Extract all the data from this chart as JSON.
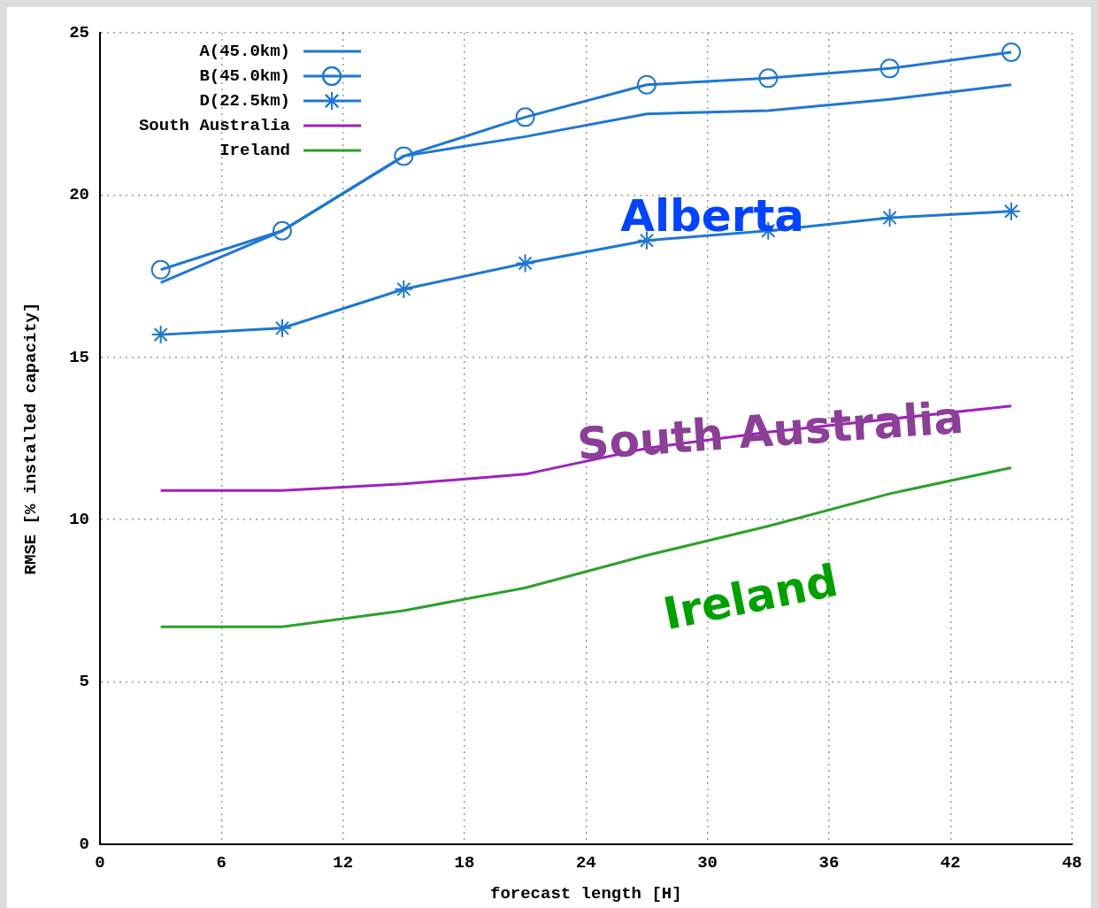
{
  "chart_data": {
    "type": "line",
    "xlabel": "forecast length [H]",
    "ylabel": "RMSE [% installed capacity]",
    "x": [
      3,
      9,
      15,
      21,
      27,
      33,
      39,
      45
    ],
    "series": [
      {
        "name": "A(45.0km)",
        "color": "#1f77d0",
        "marker": "none",
        "values": [
          17.3,
          18.9,
          21.2,
          21.8,
          22.5,
          22.6,
          22.95,
          23.4
        ]
      },
      {
        "name": "B(45.0km)",
        "color": "#1f77d0",
        "marker": "circle",
        "values": [
          17.7,
          18.9,
          21.2,
          22.4,
          23.4,
          23.6,
          23.9,
          24.4
        ]
      },
      {
        "name": "D(22.5km)",
        "color": "#1f77d0",
        "marker": "cross",
        "values": [
          15.7,
          15.9,
          17.1,
          17.9,
          18.6,
          18.9,
          19.3,
          19.5
        ]
      },
      {
        "name": "South Australia",
        "color": "#a020c0",
        "marker": "none",
        "values": [
          10.9,
          10.9,
          11.1,
          11.4,
          12.2,
          12.7,
          13.1,
          13.5
        ]
      },
      {
        "name": "Ireland",
        "color": "#2ca02c",
        "marker": "none",
        "values": [
          6.7,
          6.7,
          7.2,
          7.9,
          8.9,
          9.8,
          10.8,
          11.6
        ]
      }
    ],
    "xlim": [
      0,
      48
    ],
    "xticks": [
      0,
      6,
      12,
      18,
      24,
      30,
      36,
      42,
      48
    ],
    "ylim": [
      0,
      25
    ],
    "yticks": [
      0,
      5,
      10,
      15,
      20,
      25
    ],
    "grid": true,
    "legend": "top left",
    "line_style": "solid",
    "annotations": [
      "Alberta",
      "South Australia",
      "Ireland"
    ]
  }
}
